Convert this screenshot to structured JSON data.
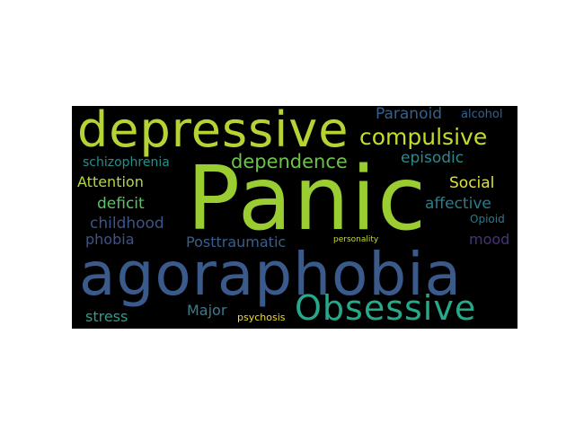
{
  "word_cloud": {
    "words": [
      {
        "key": "panic",
        "text": "Panic",
        "color": "#9acd32"
      },
      {
        "key": "agoraphobia",
        "text": "agoraphobia",
        "color": "#3b5a8c"
      },
      {
        "key": "depressive",
        "text": "depressive",
        "color": "#b5d334"
      },
      {
        "key": "obsessive",
        "text": "Obsessive",
        "color": "#26a98b"
      },
      {
        "key": "compulsive",
        "text": "compulsive",
        "color": "#c5dc2a"
      },
      {
        "key": "dependence",
        "text": "dependence",
        "color": "#6cc24a"
      },
      {
        "key": "paranoid",
        "text": "Paranoid",
        "color": "#33618c"
      },
      {
        "key": "alcohol",
        "text": "alcohol",
        "color": "#36628f"
      },
      {
        "key": "episodic",
        "text": "episodic",
        "color": "#2c8a8a"
      },
      {
        "key": "schizophrenia",
        "text": "schizophrenia",
        "color": "#23908e"
      },
      {
        "key": "attention",
        "text": "Attention",
        "color": "#b3d93a"
      },
      {
        "key": "social",
        "text": "Social",
        "color": "#e0e03a"
      },
      {
        "key": "deficit",
        "text": "deficit",
        "color": "#5ec462"
      },
      {
        "key": "affective",
        "text": "affective",
        "color": "#2a7d8e"
      },
      {
        "key": "childhood",
        "text": "childhood",
        "color": "#39558c"
      },
      {
        "key": "opioid",
        "text": "Opioid",
        "color": "#2a7b8e"
      },
      {
        "key": "phobia",
        "text": "phobia",
        "color": "#3a548c"
      },
      {
        "key": "posttraumatic",
        "text": "Posttraumatic",
        "color": "#3a5e8c"
      },
      {
        "key": "personality",
        "text": "personality",
        "color": "#c8d830"
      },
      {
        "key": "mood",
        "text": "mood",
        "color": "#46327e"
      },
      {
        "key": "stress",
        "text": "stress",
        "color": "#25a08a"
      },
      {
        "key": "major",
        "text": "Major",
        "color": "#3f7a8c"
      },
      {
        "key": "psychosis",
        "text": "psychosis",
        "color": "#f0dc2a"
      }
    ]
  }
}
